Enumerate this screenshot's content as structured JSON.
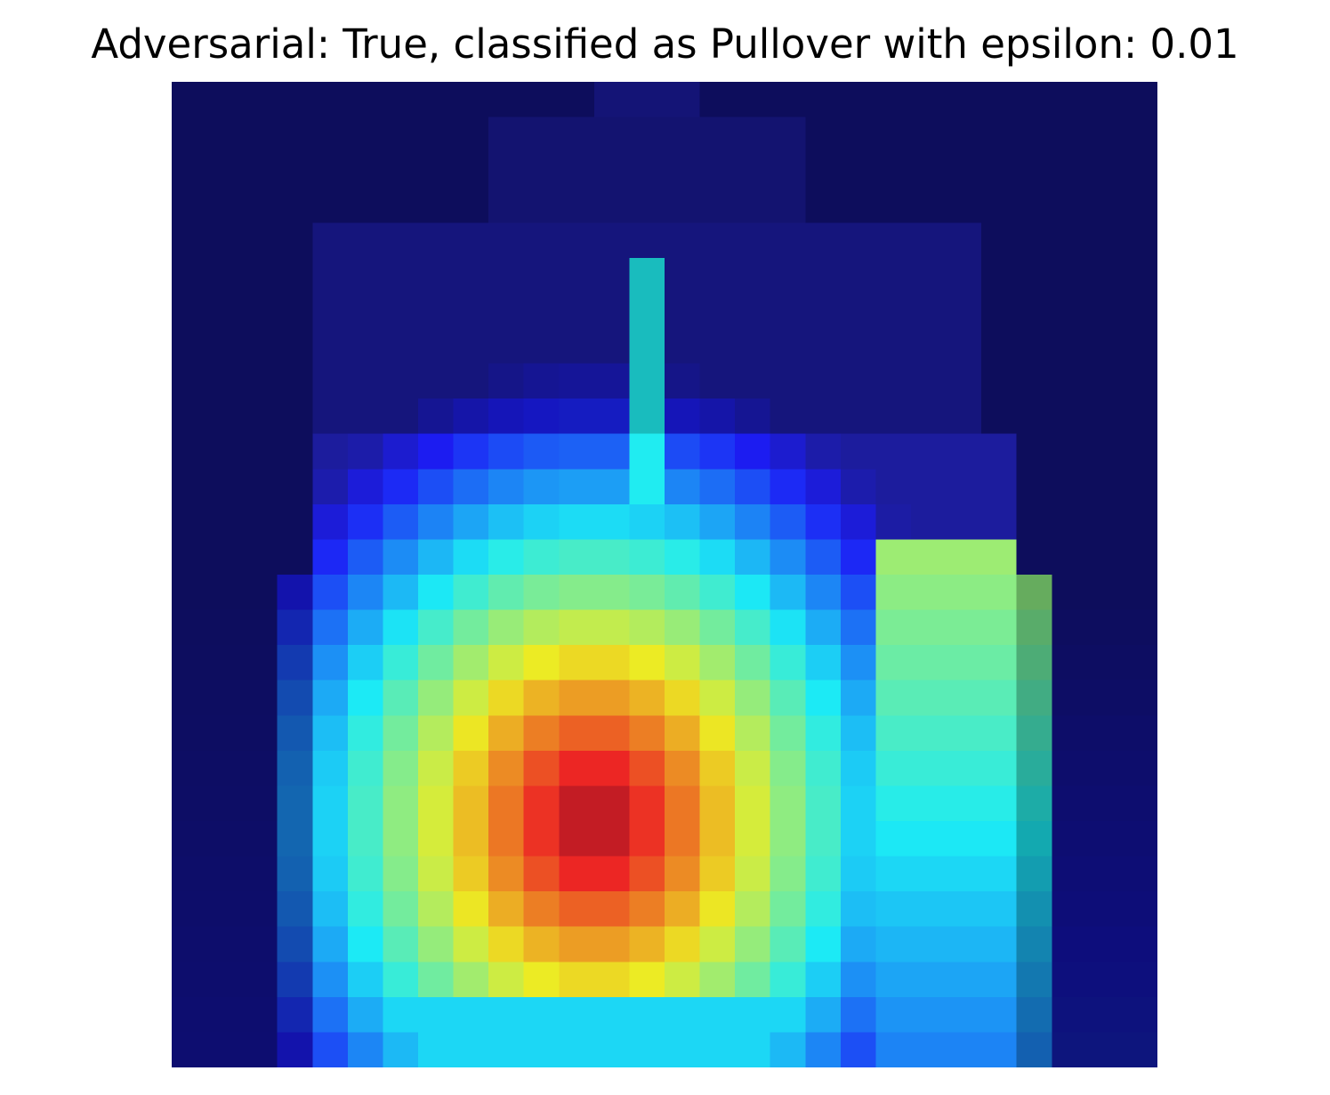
{
  "title": "Adversarial: True, classified as Pullover with epsilon: 0.01",
  "image": {
    "description_semantic": "pullover-saliency-heatmap",
    "grid_rows": 28,
    "grid_cols": 28,
    "colormap": "jet-overlay",
    "colors": {
      "cold": "#00003c",
      "cool": "#1e2aa0",
      "teal": "#40c8c8",
      "warm": "#e6e46a",
      "hot": "#c85a5a"
    }
  }
}
